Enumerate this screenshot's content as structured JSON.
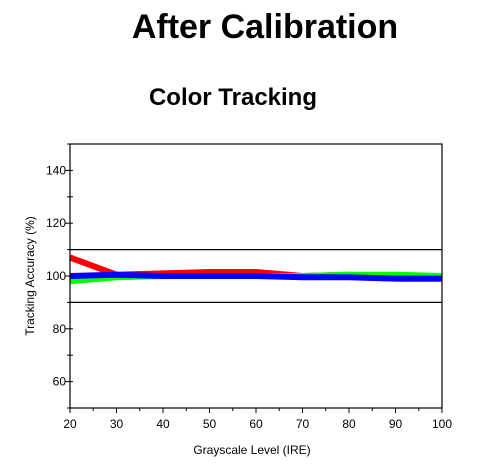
{
  "heading": "After Calibration",
  "chart_data": {
    "type": "line",
    "title": "Color Tracking",
    "xlabel": "Grayscale Level (IRE)",
    "ylabel": "Tracking Accuracy (%)",
    "xlim": [
      20,
      100
    ],
    "ylim": [
      50,
      150
    ],
    "x_ticks": [
      20,
      30,
      40,
      50,
      60,
      70,
      80,
      90,
      100
    ],
    "y_ticks": [
      60,
      80,
      100,
      120,
      140
    ],
    "grid": false,
    "legend": "none",
    "reference_lines": [
      90,
      110
    ],
    "x": [
      20,
      30,
      40,
      50,
      60,
      70,
      80,
      90,
      100
    ],
    "series": [
      {
        "color": "#ff0000",
        "values": [
          107,
          100.5,
          101,
          101.5,
          101.5,
          100,
          100.5,
          99,
          99
        ]
      },
      {
        "color": "#00ff00",
        "values": [
          98,
          99.5,
          100,
          100,
          100,
          100,
          100.5,
          100.5,
          100
        ]
      },
      {
        "color": "#0000ff",
        "values": [
          100,
          100.5,
          100,
          100,
          100,
          99.5,
          99.5,
          99,
          99
        ]
      }
    ]
  }
}
